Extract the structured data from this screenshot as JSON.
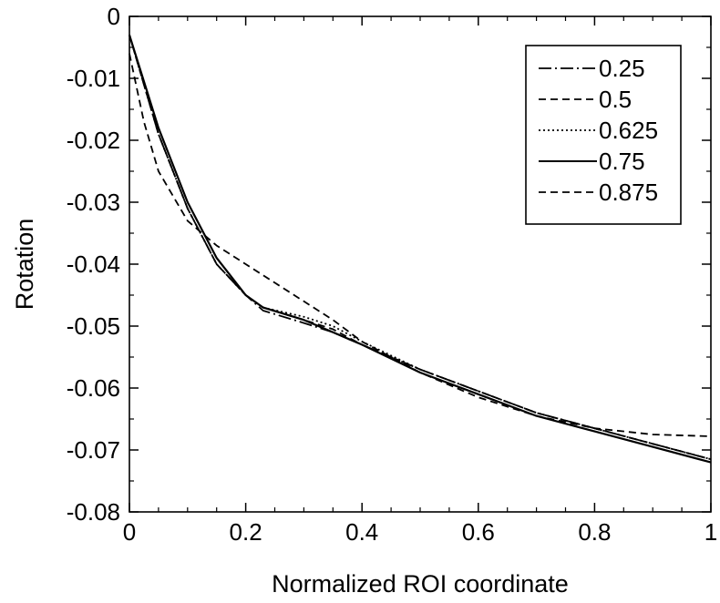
{
  "chart_data": {
    "type": "line",
    "title": "",
    "xlabel": "Normalized ROI coordinate",
    "ylabel": "Rotation",
    "xlim": [
      0,
      1
    ],
    "ylim": [
      -0.08,
      0
    ],
    "x_ticks": [
      "0",
      "0.2",
      "0.4",
      "0.6",
      "0.8",
      "1"
    ],
    "y_ticks": [
      "0",
      "-0.01",
      "-0.02",
      "-0.03",
      "-0.04",
      "-0.05",
      "-0.06",
      "-0.07",
      "-0.08"
    ],
    "grid": false,
    "legend_position": "top-right",
    "series": [
      {
        "name": "0.25",
        "line_style": "dash-dot",
        "color": "#000000",
        "x": [
          0,
          0.05,
          0.1,
          0.15,
          0.2,
          0.23,
          0.3,
          0.35,
          0.4,
          0.5,
          0.6,
          0.7,
          0.8,
          0.9,
          1.0
        ],
        "y": [
          -0.003,
          -0.019,
          -0.031,
          -0.04,
          -0.045,
          -0.0475,
          -0.0495,
          -0.051,
          -0.053,
          -0.057,
          -0.0605,
          -0.064,
          -0.0665,
          -0.069,
          -0.0715
        ]
      },
      {
        "name": "0.5",
        "line_style": "dashed",
        "color": "#000000",
        "x": [
          0,
          0.05,
          0.1,
          0.15,
          0.2,
          0.23,
          0.3,
          0.35,
          0.4,
          0.5,
          0.6,
          0.7,
          0.8,
          0.9,
          1.0
        ],
        "y": [
          -0.003,
          -0.019,
          -0.031,
          -0.04,
          -0.045,
          -0.047,
          -0.049,
          -0.0505,
          -0.053,
          -0.057,
          -0.0605,
          -0.064,
          -0.0665,
          -0.069,
          -0.0715
        ]
      },
      {
        "name": "0.625",
        "line_style": "dotted",
        "color": "#000000",
        "x": [
          0,
          0.05,
          0.1,
          0.15,
          0.2,
          0.23,
          0.3,
          0.35,
          0.4,
          0.5,
          0.6,
          0.7,
          0.8,
          0.9,
          1.0
        ],
        "y": [
          -0.003,
          -0.019,
          -0.031,
          -0.04,
          -0.045,
          -0.047,
          -0.0485,
          -0.05,
          -0.0525,
          -0.057,
          -0.0605,
          -0.064,
          -0.0665,
          -0.069,
          -0.0715
        ]
      },
      {
        "name": "0.75",
        "line_style": "solid",
        "color": "#000000",
        "x": [
          0,
          0.05,
          0.1,
          0.15,
          0.2,
          0.23,
          0.3,
          0.35,
          0.4,
          0.5,
          0.6,
          0.7,
          0.8,
          0.9,
          1.0
        ],
        "y": [
          -0.003,
          -0.018,
          -0.03,
          -0.039,
          -0.045,
          -0.047,
          -0.049,
          -0.051,
          -0.053,
          -0.0575,
          -0.061,
          -0.0645,
          -0.067,
          -0.0695,
          -0.072
        ]
      },
      {
        "name": "0.875",
        "line_style": "dashed",
        "color": "#000000",
        "x": [
          0,
          0.025,
          0.05,
          0.1,
          0.15,
          0.2,
          0.25,
          0.3,
          0.35,
          0.4,
          0.5,
          0.6,
          0.7,
          0.8,
          0.9,
          1.0
        ],
        "y": [
          -0.006,
          -0.017,
          -0.025,
          -0.033,
          -0.037,
          -0.04,
          -0.043,
          -0.046,
          -0.049,
          -0.0525,
          -0.0575,
          -0.0615,
          -0.0645,
          -0.0665,
          -0.0675,
          -0.0678
        ]
      }
    ]
  }
}
